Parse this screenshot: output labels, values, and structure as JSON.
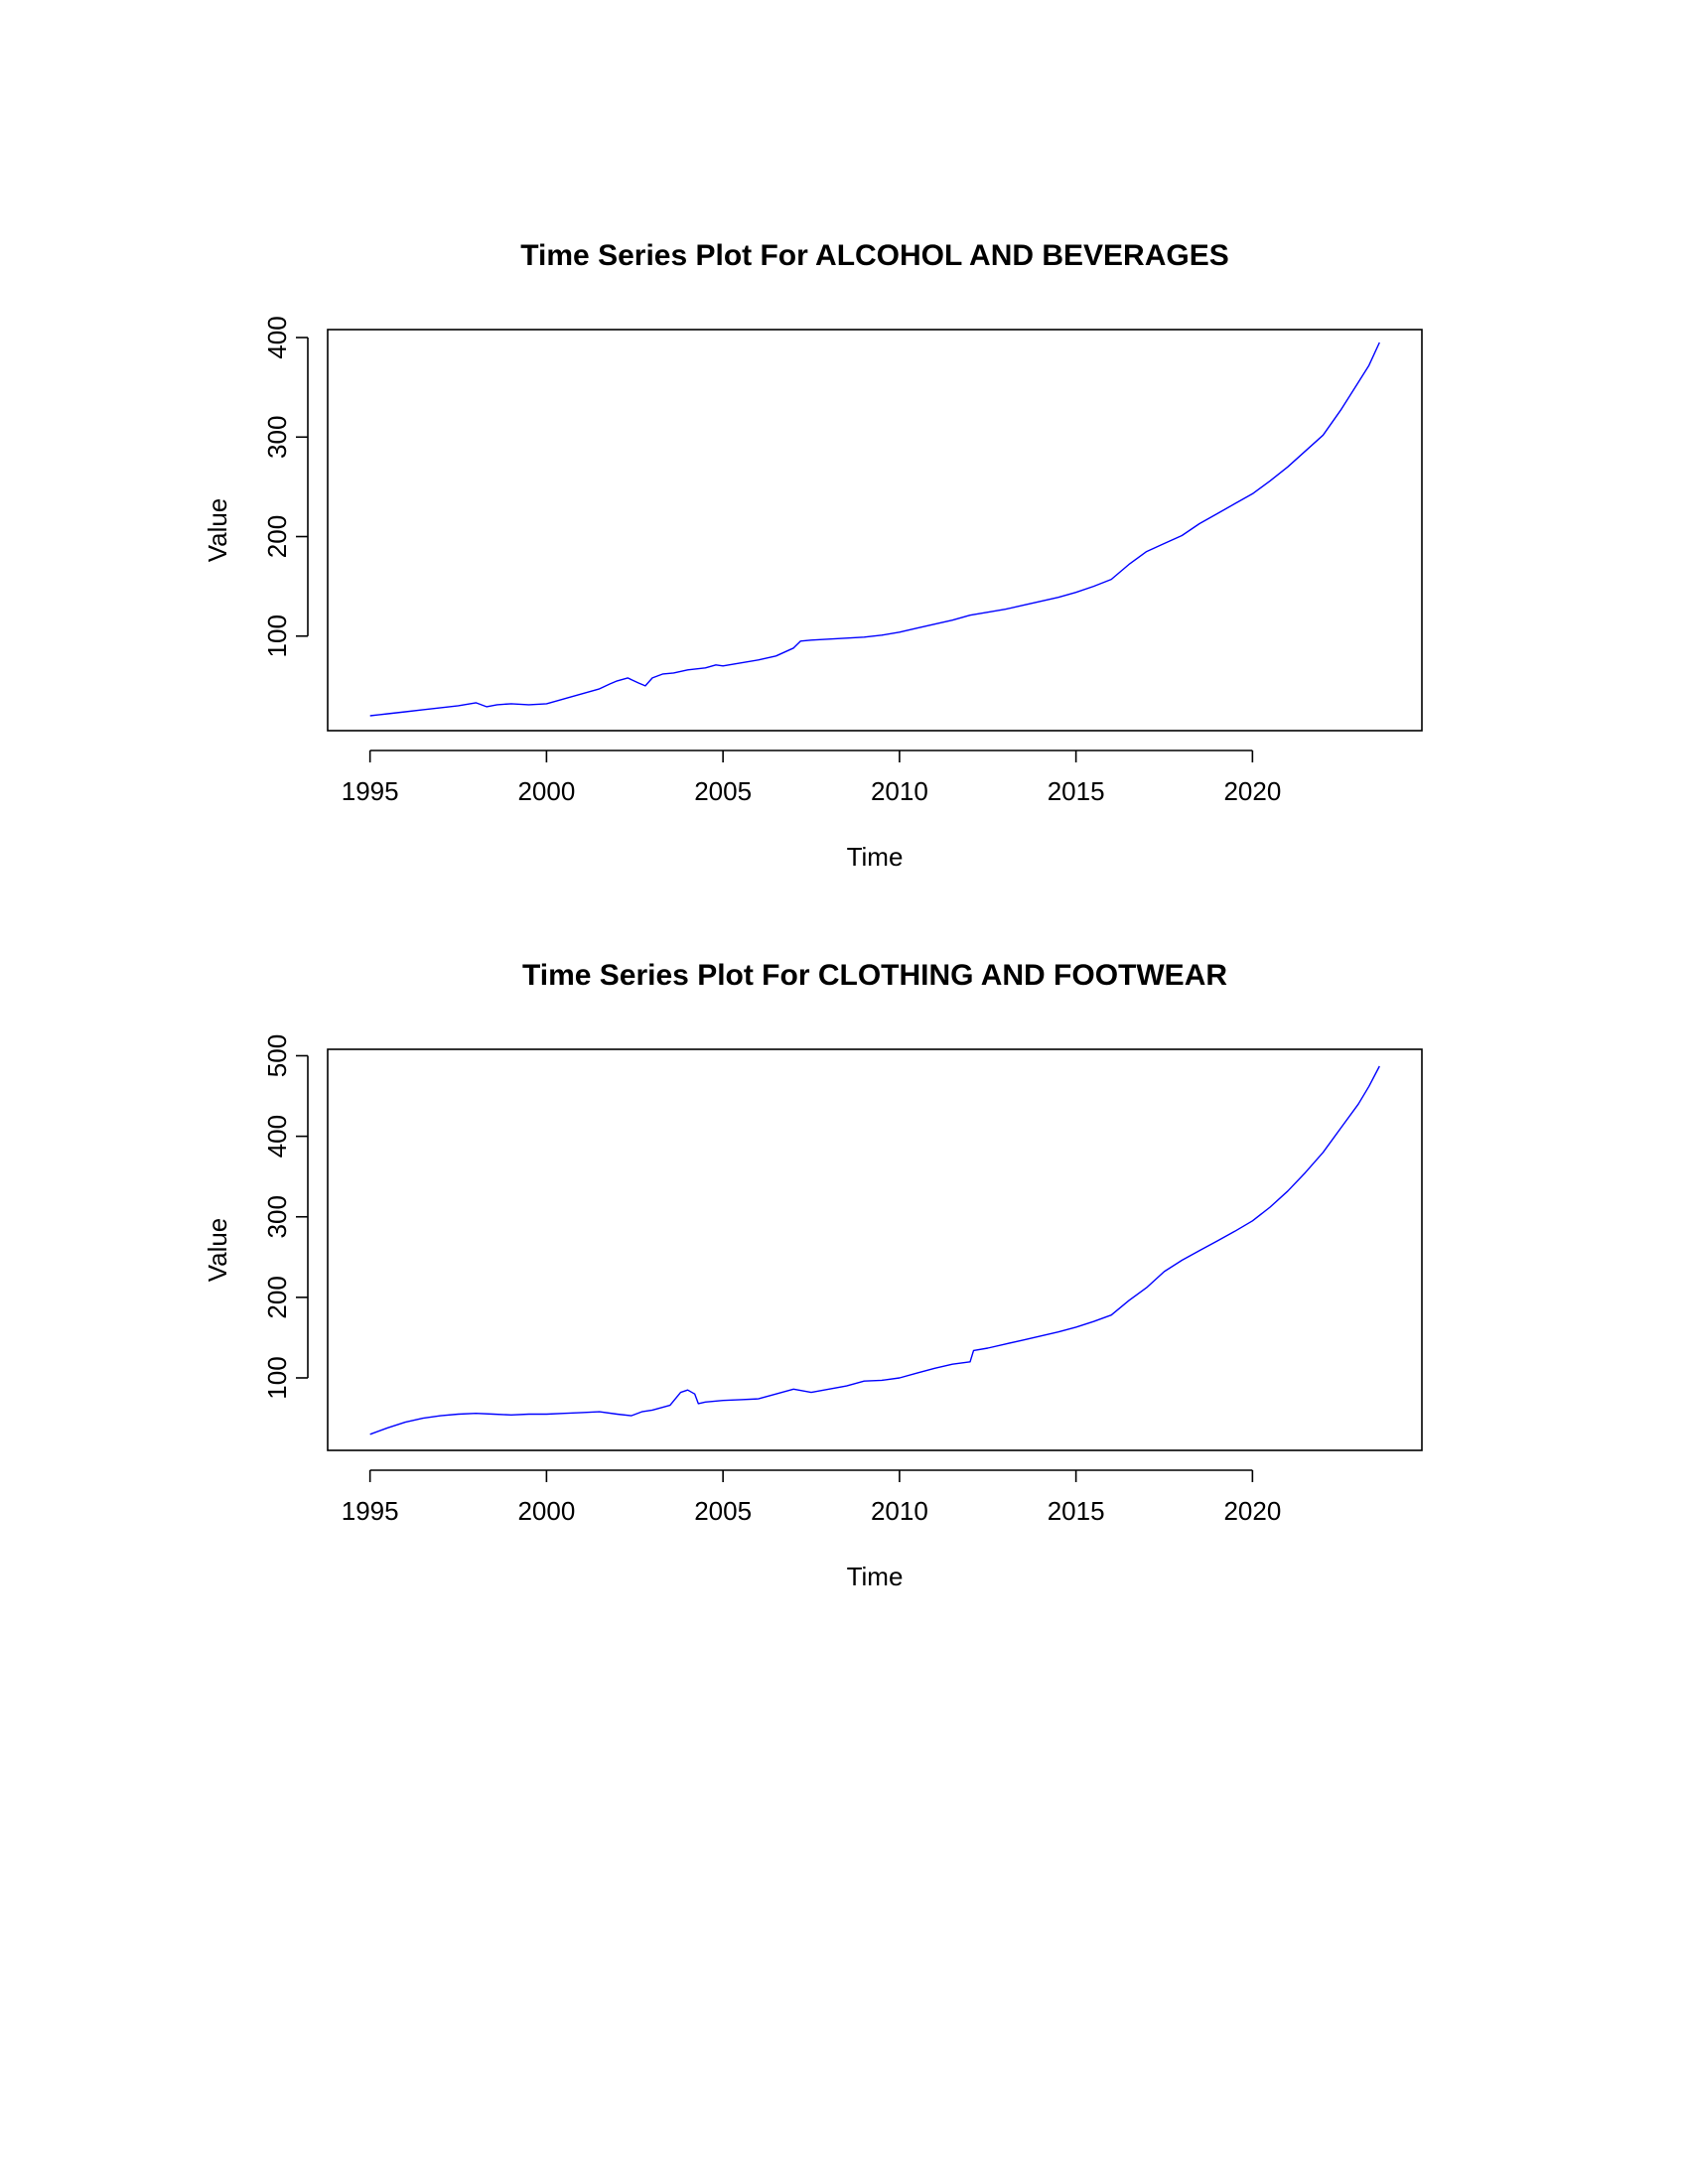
{
  "chart_data": [
    {
      "type": "line",
      "title": "Time Series Plot For ALCOHOL AND BEVERAGES",
      "xlabel": "Time",
      "ylabel": "Value",
      "xlim": [
        1993.8,
        2024.8
      ],
      "ylim": [
        5,
        408
      ],
      "xticks": [
        1995,
        2000,
        2005,
        2010,
        2015,
        2020
      ],
      "yticks": [
        100,
        200,
        300,
        400
      ],
      "grid": false,
      "color": "#0000ff",
      "series": [
        {
          "x": [
            1995.0,
            1995.5,
            1996.0,
            1996.5,
            1997.0,
            1997.5,
            1998.0,
            1998.3,
            1998.6,
            1999.0,
            1999.5,
            2000.0,
            2000.3,
            2000.6,
            2001.0,
            2001.5,
            2001.8,
            2002.0,
            2002.3,
            2002.6,
            2002.8,
            2003.0,
            2003.3,
            2003.6,
            2004.0,
            2004.5,
            2004.8,
            2005.0,
            2005.5,
            2006.0,
            2006.5,
            2007.0,
            2007.2,
            2007.5,
            2008.0,
            2008.5,
            2009.0,
            2009.5,
            2010.0,
            2010.5,
            2011.0,
            2011.5,
            2012.0,
            2012.5,
            2013.0,
            2013.5,
            2014.0,
            2014.5,
            2015.0,
            2015.5,
            2016.0,
            2016.5,
            2017.0,
            2017.5,
            2018.0,
            2018.5,
            2019.0,
            2019.5,
            2020.0,
            2020.5,
            2021.0,
            2021.5,
            2022.0,
            2022.5,
            2023.0,
            2023.3,
            2023.6
          ],
          "y": [
            20,
            22,
            24,
            26,
            28,
            30,
            33,
            29,
            31,
            32,
            31,
            32,
            35,
            38,
            42,
            47,
            52,
            55,
            58,
            53,
            50,
            58,
            62,
            63,
            66,
            68,
            71,
            70,
            73,
            76,
            80,
            88,
            95,
            96,
            97,
            98,
            99,
            101,
            104,
            108,
            112,
            116,
            121,
            124,
            127,
            131,
            135,
            139,
            144,
            150,
            157,
            172,
            185,
            193,
            201,
            213,
            223,
            233,
            243,
            256,
            270,
            286,
            302,
            327,
            355,
            372,
            395
          ]
        }
      ]
    },
    {
      "type": "line",
      "title": "Time Series Plot For CLOTHING AND FOOTWEAR",
      "xlabel": "Time",
      "ylabel": "Value",
      "xlim": [
        1993.8,
        2024.8
      ],
      "ylim": [
        10,
        508
      ],
      "xticks": [
        1995,
        2000,
        2005,
        2010,
        2015,
        2020
      ],
      "yticks": [
        100,
        200,
        300,
        400,
        500
      ],
      "grid": false,
      "color": "#0000ff",
      "series": [
        {
          "x": [
            1995.0,
            1995.5,
            1996.0,
            1996.5,
            1997.0,
            1997.5,
            1998.0,
            1998.5,
            1999.0,
            1999.5,
            2000.0,
            2000.5,
            2001.0,
            2001.5,
            2002.0,
            2002.4,
            2002.7,
            2003.0,
            2003.5,
            2003.8,
            2004.0,
            2004.2,
            2004.3,
            2004.5,
            2005.0,
            2005.5,
            2006.0,
            2006.5,
            2007.0,
            2007.5,
            2008.0,
            2008.5,
            2009.0,
            2009.5,
            2010.0,
            2010.5,
            2011.0,
            2011.5,
            2012.0,
            2012.1,
            2012.5,
            2013.0,
            2013.5,
            2014.0,
            2014.5,
            2015.0,
            2015.5,
            2016.0,
            2016.5,
            2017.0,
            2017.5,
            2018.0,
            2018.5,
            2019.0,
            2019.5,
            2020.0,
            2020.5,
            2021.0,
            2021.5,
            2022.0,
            2022.5,
            2023.0,
            2023.3,
            2023.6
          ],
          "y": [
            30,
            38,
            45,
            50,
            53,
            55,
            56,
            55,
            54,
            55,
            55,
            56,
            57,
            58,
            55,
            53,
            58,
            60,
            66,
            82,
            85,
            80,
            68,
            70,
            72,
            73,
            74,
            80,
            86,
            82,
            86,
            90,
            96,
            97,
            100,
            106,
            112,
            117,
            120,
            134,
            137,
            142,
            147,
            152,
            157,
            163,
            170,
            178,
            196,
            212,
            232,
            246,
            258,
            270,
            282,
            295,
            312,
            332,
            355,
            380,
            410,
            440,
            462,
            487
          ]
        }
      ]
    }
  ]
}
